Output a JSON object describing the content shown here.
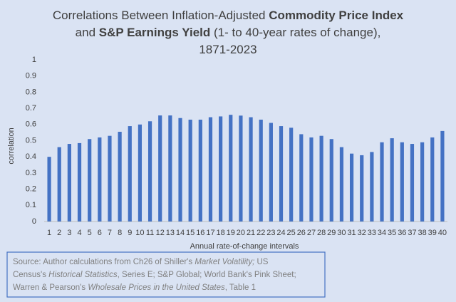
{
  "chart_data": {
    "type": "bar",
    "title_lines": [
      [
        {
          "text": "Correlations Between Inflation-Adjusted "
        },
        {
          "text": "Commodity Price Index",
          "bold": true
        }
      ],
      [
        {
          "text": "and "
        },
        {
          "text": "S&P Earnings Yield",
          "bold": true
        },
        {
          "text": " (1- to 40-year rates of change),"
        }
      ],
      [
        {
          "text": "1871-2023"
        }
      ]
    ],
    "x_label": "Annual rate-of-change intervals",
    "y_label": "correlation",
    "categories": [
      1,
      2,
      3,
      4,
      5,
      6,
      7,
      8,
      9,
      10,
      11,
      12,
      13,
      14,
      15,
      16,
      17,
      18,
      19,
      20,
      21,
      22,
      23,
      24,
      25,
      26,
      27,
      28,
      29,
      30,
      31,
      32,
      33,
      34,
      35,
      36,
      37,
      38,
      39,
      40
    ],
    "values": [
      0.4,
      0.46,
      0.48,
      0.485,
      0.51,
      0.52,
      0.53,
      0.555,
      0.59,
      0.6,
      0.62,
      0.656,
      0.656,
      0.64,
      0.63,
      0.63,
      0.645,
      0.65,
      0.66,
      0.655,
      0.645,
      0.63,
      0.61,
      0.59,
      0.58,
      0.54,
      0.52,
      0.53,
      0.51,
      0.46,
      0.42,
      0.41,
      0.43,
      0.49,
      0.515,
      0.49,
      0.48,
      0.49,
      0.52,
      0.56
    ],
    "color": "#4472c4",
    "ylim": [
      0,
      1
    ],
    "yticks": [
      0,
      0.1,
      0.2,
      0.3,
      0.4,
      0.5,
      0.6,
      0.7,
      0.8,
      0.9,
      1
    ],
    "grid": false,
    "source_lines": [
      [
        {
          "text": "Source: Author calculations from Ch26 of Shiller's "
        },
        {
          "text": "Market Volatility;",
          "italic": true
        },
        {
          "text": " US"
        }
      ],
      [
        {
          "text": "Census's "
        },
        {
          "text": "Historical Statistics",
          "italic": true
        },
        {
          "text": ", Series E; S&P Global; World Bank's Pink Sheet;"
        }
      ],
      [
        {
          "text": "Warren & Pearson's "
        },
        {
          "text": "Wholesale Prices in the United States",
          "italic": true
        },
        {
          "text": ", Table 1"
        }
      ]
    ]
  }
}
